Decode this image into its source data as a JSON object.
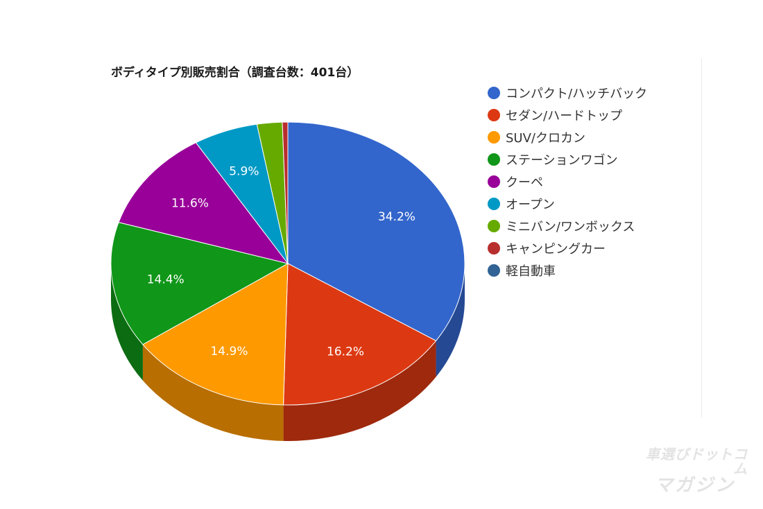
{
  "chart_data": {
    "type": "pie",
    "title": "ボディタイプ別販売割合（調査台数：401台）",
    "categories": [
      "コンパクト/ハッチバック",
      "セダン/ハードトップ",
      "SUV/クロカン",
      "ステーションワゴン",
      "クーペ",
      "オープン",
      "ミニバン/ワンボックス",
      "キャンピングカー",
      "軽自動車"
    ],
    "values": [
      34.2,
      16.2,
      14.9,
      14.4,
      11.6,
      5.9,
      2.3,
      0.5,
      0
    ],
    "data_labels": [
      "34.2%",
      "16.2%",
      "14.9%",
      "14.4%",
      "11.6%",
      "5.9%",
      "",
      "",
      ""
    ],
    "colors": [
      "#3366cc",
      "#dc3912",
      "#ff9900",
      "#109618",
      "#990099",
      "#0099c6",
      "#66aa00",
      "#b82e2e",
      "#316395"
    ],
    "legend_position": "right",
    "style": "3d"
  },
  "watermark": {
    "line1": "車選びドットコム",
    "line2": "マガジン"
  }
}
